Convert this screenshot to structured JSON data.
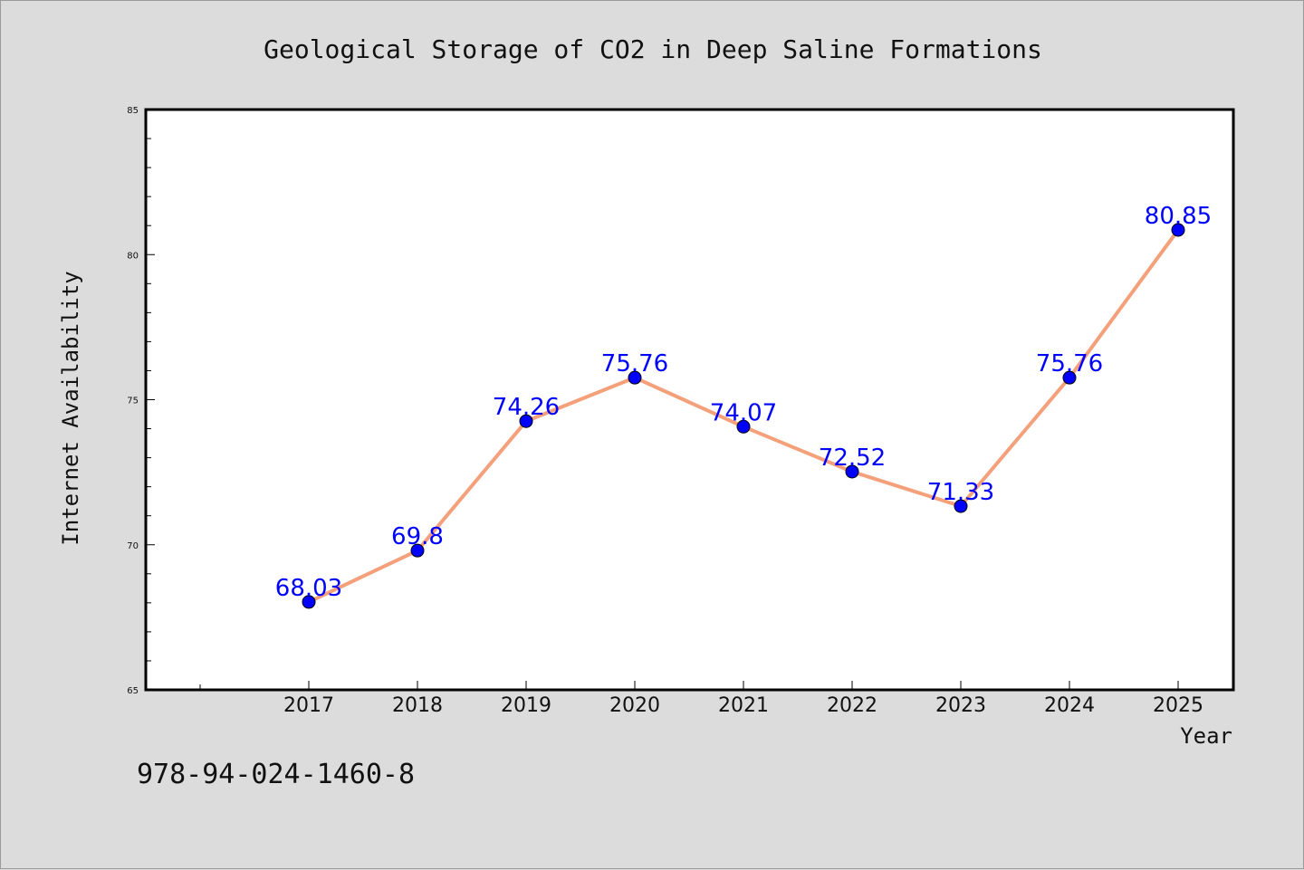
{
  "chart_data": {
    "type": "line",
    "title": "Geological Storage of CO2 in Deep Saline Formations",
    "xlabel": "Year",
    "ylabel": "Internet Availability",
    "categories": [
      "2017",
      "2018",
      "2019",
      "2020",
      "2021",
      "2022",
      "2023",
      "2024",
      "2025"
    ],
    "series": [
      {
        "values": [
          68.03,
          69.8,
          74.26,
          75.76,
          74.07,
          72.52,
          71.33,
          75.76,
          80.85
        ],
        "data_labels": [
          "68.03",
          "69.8",
          "74.26",
          "75.76",
          "74.07",
          "72.52",
          "71.33",
          "75.76",
          "80.85"
        ]
      }
    ],
    "ylim": [
      65,
      85
    ],
    "yticks": [
      65,
      70,
      75,
      80,
      85
    ],
    "ytick_labels": [
      "65",
      "70",
      "75",
      "80",
      "85"
    ],
    "grid": false,
    "colors": {
      "line": "#f4a07a",
      "marker": "#0000ff",
      "label": "#0000ff",
      "background": "#dcdcdc",
      "plot_area": "#ffffff"
    }
  },
  "footnote": "978-94-024-1460-8"
}
